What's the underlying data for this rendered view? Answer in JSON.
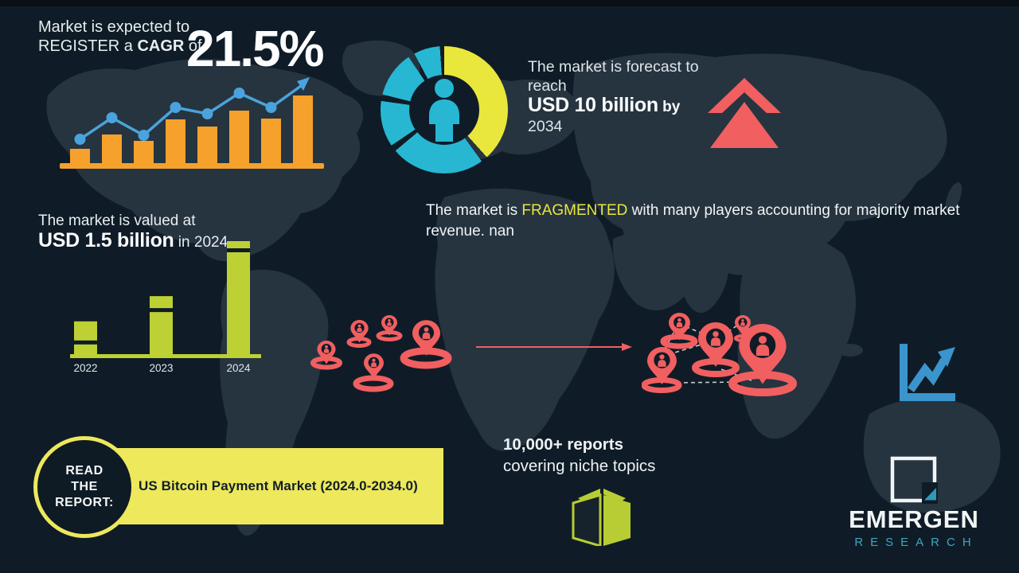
{
  "colors": {
    "background": "#0f1c27",
    "topbar": "#0a1016",
    "map": "#263440",
    "orange": "#f5a12c",
    "blue": "#4aa3dc",
    "donut_yellow": "#e9e73c",
    "cyan": "#27b7d3",
    "green": "#bdd134",
    "red": "#f15f60",
    "banner_yellow": "#ede85c",
    "teal": "#2f9ab6",
    "dark_text": "#111e29"
  },
  "cagr_section": {
    "line1": "Market is expected to",
    "line2_prefix": "REGISTER a ",
    "line2_bold": "CAGR",
    "line2_suffix": " of",
    "value": "21.5%"
  },
  "forecast_section": {
    "line1": "The market is forecast to",
    "line2": "reach",
    "value": "USD 10 billion",
    "by": " by",
    "year": "2034"
  },
  "fragmented_section": {
    "prefix": "The market is ",
    "highlight": "FRAGMENTED",
    "suffix": " with many players accounting for majority market revenue. nan"
  },
  "valuation_section": {
    "line1": "The market is valued at",
    "value": "USD 1.5 billion",
    "suffix": " in 2024"
  },
  "report_banner": {
    "circle_line1": "READ",
    "circle_line2": "THE",
    "circle_line3": "REPORT:",
    "title": "US Bitcoin Payment Market (2024.0-2034.0)"
  },
  "reports_blurb": {
    "line1": "10,000+ reports",
    "line2": "covering niche topics"
  },
  "logo": {
    "name": "EMERGEN",
    "subtitle": "RESEARCH"
  },
  "icons": {
    "donut_center": "person-icon",
    "forecast": "double-up-chevron-icon",
    "distribution": "location-pin-icon",
    "flow": "right-arrow-icon",
    "growth": "line-chart-arrow-icon",
    "library": "open-book-icon",
    "logo_mark": "square-chart-logo-icon"
  },
  "chart_data": [
    {
      "id": "cagr-trend-chart",
      "type": "bar+line",
      "title": "CAGR growth trend (decorative, no axis labels)",
      "bars": [
        20,
        38,
        30,
        57,
        48,
        68,
        58,
        87
      ],
      "line": [
        32,
        59,
        37,
        72,
        64,
        90,
        72
      ],
      "bar_color": "#f5a12c",
      "line_color": "#4aa3dc",
      "legend": "none",
      "grid": false
    },
    {
      "id": "market-share-donut",
      "type": "donut",
      "title": "Market composition donut (decorative, unlabeled)",
      "segments": [
        {
          "color": "#e9e73c",
          "start_deg": 0,
          "end_deg": 138
        },
        {
          "color": "#27b7d3",
          "start_deg": 144,
          "end_deg": 230
        },
        {
          "color": "#27b7d3",
          "start_deg": 236,
          "end_deg": 278
        },
        {
          "color": "#27b7d3",
          "start_deg": 284,
          "end_deg": 326
        },
        {
          "color": "#27b7d3",
          "start_deg": 332,
          "end_deg": 356
        }
      ]
    },
    {
      "id": "valuation-bar-chart",
      "type": "bar",
      "title": "Market valuation by year",
      "categories": [
        "2022",
        "2023",
        "2024"
      ],
      "values": [
        0.45,
        0.78,
        1.5
      ],
      "unit": "USD billion",
      "ylim": [
        0,
        1.5
      ],
      "bar_color": "#bdd134",
      "band_offsets": [
        24,
        15,
        9
      ],
      "grid": false
    }
  ]
}
